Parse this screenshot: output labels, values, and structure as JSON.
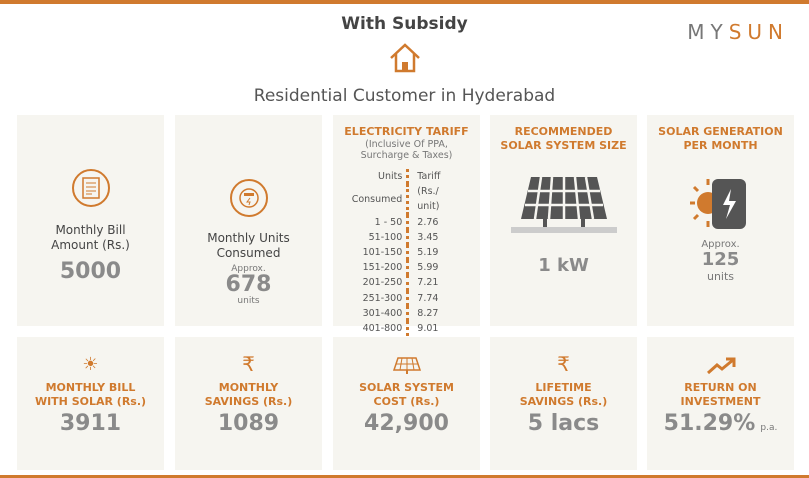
{
  "header": {
    "title": "With Subsidy",
    "logo_left": "MY",
    "logo_right": "SUN",
    "subtitle": "Residential Customer in Hyderabad"
  },
  "colors": {
    "accent": "#d07a2e",
    "card": "#f6f5f0"
  },
  "row1": {
    "bill": {
      "icon": "bill-icon",
      "label1": "Monthly Bill",
      "label2": "Amount (Rs.)",
      "value": "5000"
    },
    "units": {
      "icon": "meter-icon",
      "label1": "Monthly Units",
      "label2": "Consumed",
      "approx": "Approx.",
      "value": "678",
      "unit": "units"
    },
    "tariff": {
      "title": "ELECTRICITY TARIFF",
      "note1": "(Inclusive Of PPA,",
      "note2": "Surcharge & Taxes)",
      "head_units1": "Units",
      "head_units2": "Consumed",
      "head_tariff1": "Tariff",
      "head_tariff2": "(Rs./ unit)",
      "rows": [
        [
          "1 - 50",
          "2.76"
        ],
        [
          "51-100",
          "3.45"
        ],
        [
          "101-150",
          "5.19"
        ],
        [
          "151-200",
          "5.99"
        ],
        [
          "201-250",
          "7.21"
        ],
        [
          "251-300",
          "7.74"
        ],
        [
          "301-400",
          "8.27"
        ],
        [
          "401-800",
          "9.01"
        ]
      ]
    },
    "system": {
      "title1": "RECOMMENDED",
      "title2": "SOLAR SYSTEM SIZE",
      "icon": "solar-panel-icon",
      "value": "1 kW"
    },
    "generation": {
      "title1": "SOLAR GENERATION",
      "title2": "PER MONTH",
      "icon": "sun-battery-icon",
      "approx": "Approx.",
      "value": "125",
      "unit": "units"
    }
  },
  "row2": [
    {
      "icon": "sun-icon",
      "title1": "MONTHLY BILL",
      "title2": "WITH SOLAR (Rs.)",
      "value": "3911",
      "suffix": ""
    },
    {
      "icon": "rupee-icon",
      "title1": "MONTHLY",
      "title2": "SAVINGS (Rs.)",
      "value": "1089",
      "suffix": ""
    },
    {
      "icon": "solar-panel-icon",
      "title1": "SOLAR SYSTEM",
      "title2": "COST (Rs.)",
      "value": "42,900",
      "suffix": ""
    },
    {
      "icon": "rupee-icon",
      "title1": "LIFETIME",
      "title2": "SAVINGS (Rs.)",
      "value": "5 lacs",
      "suffix": ""
    },
    {
      "icon": "trend-up-icon",
      "title1": "RETURN ON",
      "title2": "INVESTMENT",
      "value": "51.29%",
      "suffix": "p.a."
    }
  ]
}
